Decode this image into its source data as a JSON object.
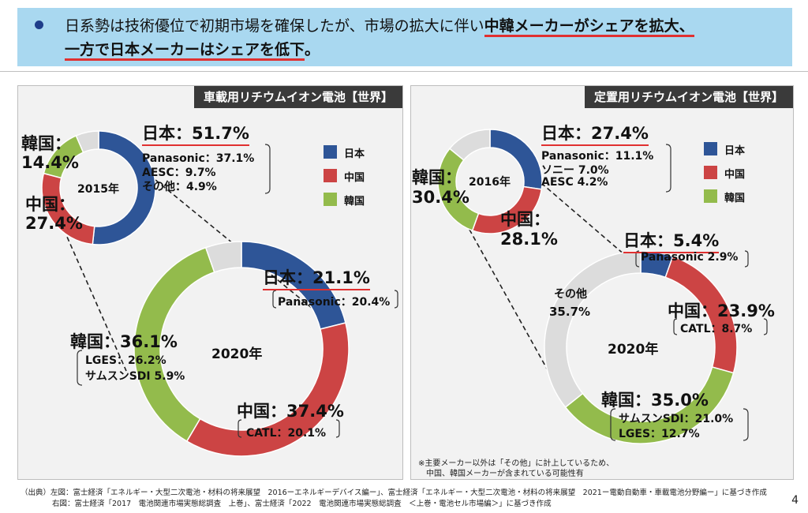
{
  "header": {
    "line1_normal": "日系勢は技術優位で初期市場を確保したが、市場の拡大に伴い",
    "line1_highlight": "中韓メーカーがシェアを拡大、",
    "line2_highlight": "一方で日本メーカーはシェアを低下",
    "line2_end": "。"
  },
  "legend": {
    "japan": "日本",
    "china": "中国",
    "korea": "韓国"
  },
  "colors": {
    "japan": "#2e5597",
    "china": "#cc4444",
    "korea": "#93bb4c",
    "other": "#dcdcdc"
  },
  "chart_data": [
    {
      "type": "pie",
      "panel": "車載用リチウムイオン電池【世界】",
      "center_label": "2015年",
      "slices": [
        {
          "name": "日本",
          "value": 51.7,
          "label": "日本：51.7%",
          "details": [
            "Panasonic：37.1%",
            "AESC：9.7%",
            "その他：4.9%"
          ]
        },
        {
          "name": "中国",
          "value": 27.4,
          "label_a": "中国：",
          "label_b": "27.4%"
        },
        {
          "name": "韓国",
          "value": 14.4,
          "label_a": "韓国：",
          "label_b": "14.4%"
        },
        {
          "name": "その他",
          "value": 6.5
        }
      ]
    },
    {
      "type": "pie",
      "panel": "車載用リチウムイオン電池【世界】",
      "center_label": "2020年",
      "slices": [
        {
          "name": "日本",
          "value": 21.1,
          "label": "日本：21.1%",
          "details": [
            "Panasonic：20.4%"
          ]
        },
        {
          "name": "中国",
          "value": 37.4,
          "label": "中国：37.4%",
          "details": [
            "CATL：20.1%"
          ]
        },
        {
          "name": "韓国",
          "value": 36.1,
          "label": "韓国：36.1%",
          "details": [
            "LGES：26.2%",
            "サムスンSDI 5.9%"
          ]
        },
        {
          "name": "その他",
          "value": 5.4
        }
      ]
    },
    {
      "type": "pie",
      "panel": "定置用リチウムイオン電池【世界】",
      "center_label": "2016年",
      "slices": [
        {
          "name": "日本",
          "value": 27.4,
          "label": "日本：27.4%",
          "details": [
            "Panasonic：11.1%",
            "ソニー 7.0%",
            "AESC 4.2%"
          ]
        },
        {
          "name": "中国",
          "value": 28.1,
          "label_a": "中国：",
          "label_b": "28.1%"
        },
        {
          "name": "韓国",
          "value": 30.4,
          "label_a": "韓国：",
          "label_b": "30.4%"
        },
        {
          "name": "その他",
          "value": 14.1
        }
      ]
    },
    {
      "type": "pie",
      "panel": "定置用リチウムイオン電池【世界】",
      "center_label": "2020年",
      "slices": [
        {
          "name": "日本",
          "value": 5.4,
          "label": "日本：5.4%",
          "details": [
            "Panasonic 2.9%"
          ]
        },
        {
          "name": "中国",
          "value": 23.9,
          "label": "中国：23.9%",
          "details": [
            "CATL：8.7%"
          ]
        },
        {
          "name": "韓国",
          "value": 35.0,
          "label": "韓国：35.0%",
          "details": [
            "サムスンSDI：21.0%",
            "LGES：12.7%"
          ]
        },
        {
          "name": "その他",
          "value": 35.7,
          "label_a": "その他",
          "label_b": "35.7%"
        }
      ]
    }
  ],
  "note": {
    "line1": "※主要メーカー以外は「その他」に計上しているため、",
    "line2": "中国、韓国メーカーが含まれている可能性有"
  },
  "source": {
    "line1": "（出典）左図：富士経済「エネルギー・大型二次電池・材料の将来展望　2016ーエネルギーデバイス編ー」、富士経済「エネルギー・大型二次電池・材料の将来展望　2021ー電動自動車・車載電池分野編ー」に基づき作成",
    "line2": "右図：富士経済「2017　電池関連市場実態総調査　上巻」、富士経済「2022　電池関連市場実態総調査　＜上巻・電池セル市場編＞」に基づき作成"
  },
  "page_number": "4"
}
